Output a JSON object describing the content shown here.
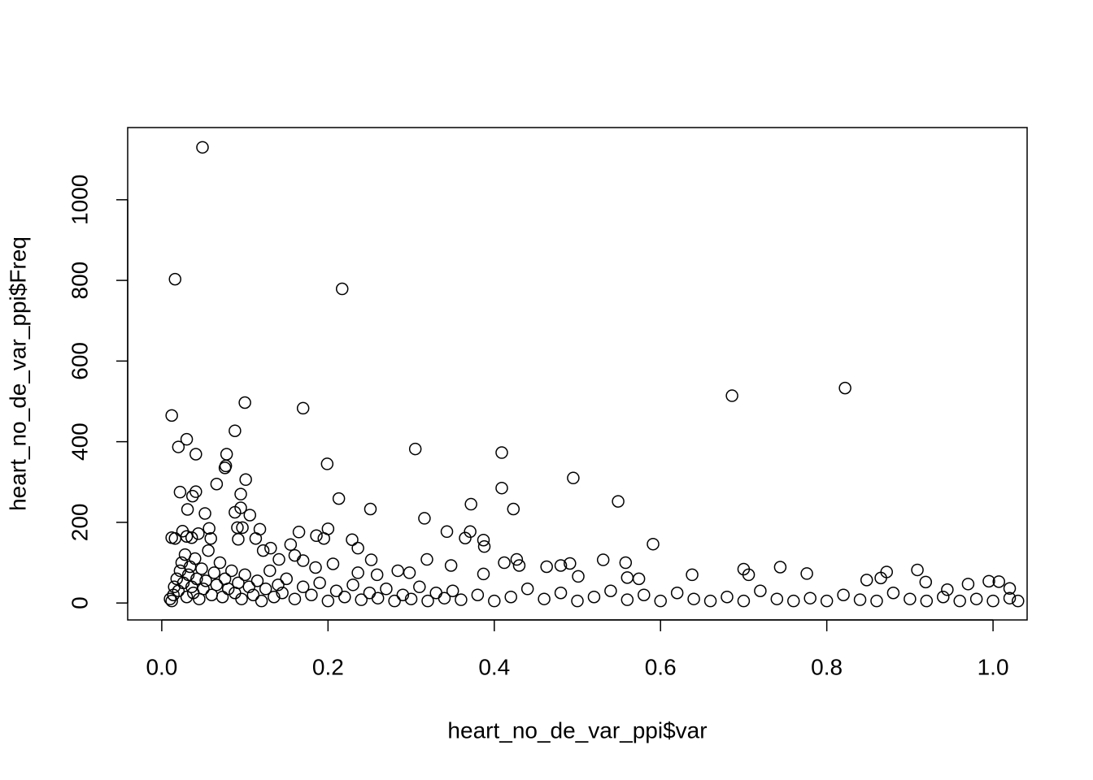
{
  "chart_data": {
    "type": "scatter",
    "x_label": "heart_no_de_var_ppi$var",
    "y_label": "heart_no_de_var_ppi$Freq",
    "x": [
      0.049,
      0.016,
      0.217,
      0.686,
      0.822,
      0.012,
      0.1,
      0.17,
      0.03,
      0.02,
      0.041,
      0.088,
      0.078,
      0.077,
      0.076,
      0.305,
      0.409,
      0.199,
      0.101,
      0.066,
      0.495,
      0.022,
      0.041,
      0.037,
      0.095,
      0.213,
      0.409,
      0.549,
      0.372,
      0.031,
      0.095,
      0.052,
      0.088,
      0.106,
      0.251,
      0.423,
      0.316,
      0.057,
      0.091,
      0.097,
      0.2,
      0.118,
      0.343,
      0.371,
      0.165,
      0.012,
      0.036,
      0.059,
      0.113,
      0.186,
      0.195,
      0.229,
      0.365,
      0.387,
      0.591,
      0.388,
      0.092,
      0.016,
      0.025,
      0.044,
      0.03,
      0.236,
      0.131,
      0.155,
      0.16,
      0.252,
      0.319,
      0.206,
      0.348,
      0.412,
      0.427,
      0.43,
      0.463,
      0.48,
      0.491,
      0.531,
      0.558,
      0.7,
      0.706,
      0.744,
      0.638,
      0.776,
      0.872,
      0.909,
      0.919,
      0.995,
      1.007,
      1.02,
      0.97,
      0.848,
      0.865,
      0.945,
      0.501,
      0.574,
      0.56,
      0.387,
      0.284,
      0.298,
      0.236,
      0.259,
      0.141,
      0.17,
      0.185,
      0.122,
      0.01,
      0.012,
      0.014,
      0.015,
      0.018,
      0.02,
      0.022,
      0.024,
      0.026,
      0.028,
      0.03,
      0.032,
      0.034,
      0.036,
      0.038,
      0.04,
      0.042,
      0.045,
      0.048,
      0.05,
      0.053,
      0.056,
      0.06,
      0.063,
      0.066,
      0.07,
      0.073,
      0.076,
      0.08,
      0.084,
      0.088,
      0.092,
      0.096,
      0.1,
      0.105,
      0.11,
      0.115,
      0.12,
      0.125,
      0.13,
      0.135,
      0.14,
      0.145,
      0.15,
      0.16,
      0.17,
      0.18,
      0.19,
      0.2,
      0.21,
      0.22,
      0.23,
      0.24,
      0.25,
      0.26,
      0.27,
      0.28,
      0.29,
      0.3,
      0.31,
      0.32,
      0.33,
      0.34,
      0.35,
      0.36,
      0.38,
      0.4,
      0.42,
      0.44,
      0.46,
      0.48,
      0.5,
      0.52,
      0.54,
      0.56,
      0.58,
      0.6,
      0.62,
      0.64,
      0.66,
      0.68,
      0.7,
      0.72,
      0.74,
      0.76,
      0.78,
      0.8,
      0.82,
      0.84,
      0.86,
      0.88,
      0.9,
      0.92,
      0.94,
      0.96,
      0.98,
      1.0,
      1.02,
      1.03
    ],
    "values": [
      1130,
      803,
      779,
      514,
      533,
      465,
      497,
      483,
      406,
      387,
      369,
      427,
      369,
      340,
      335,
      382,
      373,
      345,
      306,
      295,
      310,
      275,
      276,
      265,
      270,
      259,
      285,
      252,
      245,
      232,
      236,
      222,
      225,
      218,
      233,
      233,
      210,
      185,
      187,
      187,
      184,
      183,
      177,
      177,
      176,
      162,
      162,
      160,
      160,
      167,
      160,
      157,
      161,
      156,
      146,
      140,
      158,
      160,
      178,
      172,
      165,
      136,
      136,
      145,
      118,
      107,
      108,
      97,
      93,
      100,
      108,
      93,
      90,
      93,
      98,
      107,
      100,
      84,
      70,
      89,
      70,
      73,
      77,
      82,
      52,
      54,
      53,
      36,
      47,
      57,
      62,
      33,
      66,
      60,
      63,
      72,
      80,
      75,
      75,
      70,
      108,
      105,
      88,
      130,
      10,
      5,
      20,
      40,
      60,
      30,
      80,
      100,
      50,
      120,
      15,
      70,
      90,
      40,
      25,
      110,
      60,
      10,
      85,
      35,
      55,
      130,
      20,
      75,
      45,
      100,
      15,
      60,
      35,
      80,
      25,
      50,
      10,
      70,
      40,
      20,
      55,
      5,
      35,
      80,
      15,
      45,
      25,
      60,
      10,
      40,
      20,
      50,
      5,
      30,
      15,
      45,
      8,
      25,
      12,
      35,
      5,
      20,
      10,
      40,
      5,
      25,
      12,
      30,
      8,
      20,
      5,
      15,
      35,
      10,
      25,
      5,
      15,
      30,
      8,
      20,
      5,
      25,
      10,
      5,
      15,
      5,
      30,
      10,
      5,
      12,
      5,
      20,
      8,
      5,
      25,
      10,
      5,
      15,
      5,
      10,
      5,
      12,
      5
    ],
    "xlim": [
      -0.041,
      1.041
    ],
    "ylim": [
      -42,
      1179
    ],
    "xticks": [
      {
        "value": 0,
        "label": "0.0"
      },
      0.2,
      0.4,
      0.6,
      0.8,
      {
        "value": 1,
        "label": "1.0"
      }
    ],
    "yticks": [
      0,
      200,
      400,
      600,
      800,
      1000
    ],
    "color": "#000000",
    "grid": false
  }
}
